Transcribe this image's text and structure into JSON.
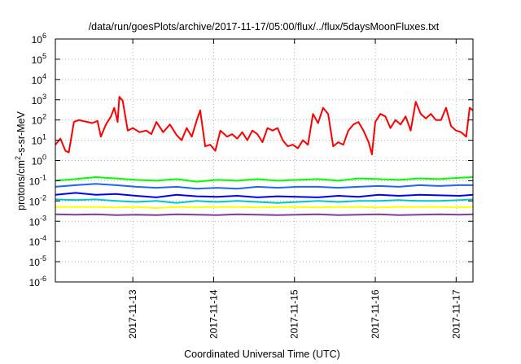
{
  "chart_data": {
    "type": "line",
    "title": "/data/run/goesPlots/archive/2017-11-17/05:00/flux/../flux/5daysMoonFluxes.txt",
    "xlabel": "Coordinated Universal Time (UTC)",
    "ylabel_prefix": "protons/cm",
    "ylabel_sup": "2",
    "ylabel_suffix": "-s-sr-MeV",
    "y_scale": "log",
    "ylim": [
      1e-06,
      1000000.0
    ],
    "y_ticks": [
      {
        "base": "10",
        "exp": "6",
        "value": 1000000.0
      },
      {
        "base": "10",
        "exp": "5",
        "value": 100000.0
      },
      {
        "base": "10",
        "exp": "4",
        "value": 10000.0
      },
      {
        "base": "10",
        "exp": "3",
        "value": 1000.0
      },
      {
        "base": "10",
        "exp": "2",
        "value": 100.0
      },
      {
        "base": "10",
        "exp": "1",
        "value": 10.0
      },
      {
        "base": "10",
        "exp": "0",
        "value": 1.0
      },
      {
        "base": "10",
        "exp": "-1",
        "value": 0.1
      },
      {
        "base": "10",
        "exp": "-2",
        "value": 0.01
      },
      {
        "base": "10",
        "exp": "-3",
        "value": 0.001
      },
      {
        "base": "10",
        "exp": "-4",
        "value": 0.0001
      },
      {
        "base": "10",
        "exp": "-5",
        "value": 1e-05
      },
      {
        "base": "10",
        "exp": "-6",
        "value": 1e-06
      }
    ],
    "xlim": [
      "2017-11-12 01:00",
      "2017-11-17 05:00"
    ],
    "x_ticks": [
      {
        "label": "2017-11-13",
        "time": "2017-11-13 00:00"
      },
      {
        "label": "2017-11-14",
        "time": "2017-11-14 00:00"
      },
      {
        "label": "2017-11-15",
        "time": "2017-11-15 00:00"
      },
      {
        "label": "2017-11-16",
        "time": "2017-11-16 00:00"
      },
      {
        "label": "2017-11-17",
        "time": "2017-11-17 00:00"
      }
    ],
    "grid": true,
    "series": [
      {
        "color": "#ff0000",
        "x": [
          "2017-11-12 01:00",
          "2017-11-12 02:30",
          "2017-11-12 04:00",
          "2017-11-12 05:00",
          "2017-11-12 06:30",
          "2017-11-12 08:00",
          "2017-11-12 09:00",
          "2017-11-12 10:30",
          "2017-11-12 12:00",
          "2017-11-12 13:30",
          "2017-11-12 14:30",
          "2017-11-12 16:00",
          "2017-11-12 17:30",
          "2017-11-12 18:30",
          "2017-11-12 19:30",
          "2017-11-12 20:00",
          "2017-11-12 21:00",
          "2017-11-12 22:30",
          "2017-11-13 00:00",
          "2017-11-13 02:00",
          "2017-11-13 04:00",
          "2017-11-13 05:30",
          "2017-11-13 07:00",
          "2017-11-13 09:00",
          "2017-11-13 11:00",
          "2017-11-13 13:00",
          "2017-11-13 14:30",
          "2017-11-13 16:00",
          "2017-11-13 17:30",
          "2017-11-13 19:00",
          "2017-11-13 20:00",
          "2017-11-13 21:30",
          "2017-11-13 23:00",
          "2017-11-14 00:30",
          "2017-11-14 02:00",
          "2017-11-14 04:00",
          "2017-11-14 05:30",
          "2017-11-14 07:00",
          "2017-11-14 08:30",
          "2017-11-14 10:00",
          "2017-11-14 11:30",
          "2017-11-14 13:00",
          "2017-11-14 14:30",
          "2017-11-14 16:00",
          "2017-11-14 17:30",
          "2017-11-14 19:00",
          "2017-11-14 20:30",
          "2017-11-14 22:00",
          "2017-11-14 23:30",
          "2017-11-15 01:00",
          "2017-11-15 02:30",
          "2017-11-15 04:00",
          "2017-11-15 05:30",
          "2017-11-15 07:00",
          "2017-11-15 08:30",
          "2017-11-15 10:00",
          "2017-11-15 11:30",
          "2017-11-15 13:00",
          "2017-11-15 14:30",
          "2017-11-15 16:00",
          "2017-11-15 17:30",
          "2017-11-15 19:00",
          "2017-11-15 20:30",
          "2017-11-15 22:00",
          "2017-11-15 23:00",
          "2017-11-16 00:00",
          "2017-11-16 01:30",
          "2017-11-16 03:00",
          "2017-11-16 04:30",
          "2017-11-16 06:00",
          "2017-11-16 07:30",
          "2017-11-16 09:00",
          "2017-11-16 10:30",
          "2017-11-16 12:00",
          "2017-11-16 13:30",
          "2017-11-16 15:00",
          "2017-11-16 16:30",
          "2017-11-16 18:00",
          "2017-11-16 19:30",
          "2017-11-16 21:00",
          "2017-11-16 22:30",
          "2017-11-17 00:00",
          "2017-11-17 01:30",
          "2017-11-17 03:00",
          "2017-11-17 04:00",
          "2017-11-17 05:00"
        ],
        "y": [
          6,
          12,
          3,
          2.5,
          80,
          100,
          90,
          80,
          70,
          90,
          15,
          60,
          150,
          400,
          80,
          1400,
          900,
          30,
          40,
          25,
          30,
          20,
          80,
          25,
          60,
          18,
          10,
          40,
          15,
          100,
          300,
          5,
          6,
          3,
          30,
          15,
          20,
          12,
          25,
          10,
          30,
          20,
          8,
          40,
          30,
          40,
          10,
          5,
          6,
          4,
          10,
          6,
          200,
          70,
          400,
          200,
          5,
          8,
          6,
          30,
          60,
          80,
          30,
          8,
          2,
          80,
          200,
          150,
          40,
          100,
          60,
          150,
          30,
          800,
          200,
          120,
          200,
          100,
          100,
          400,
          50,
          30,
          25,
          15,
          400,
          300
        ]
      },
      {
        "color": "#00ff00",
        "x": [
          "2017-11-12 01:00",
          "2017-11-12 07:00",
          "2017-11-12 13:00",
          "2017-11-12 19:00",
          "2017-11-13 01:00",
          "2017-11-13 07:00",
          "2017-11-13 13:00",
          "2017-11-13 19:00",
          "2017-11-14 01:00",
          "2017-11-14 07:00",
          "2017-11-14 13:00",
          "2017-11-14 19:00",
          "2017-11-15 01:00",
          "2017-11-15 07:00",
          "2017-11-15 13:00",
          "2017-11-15 19:00",
          "2017-11-16 01:00",
          "2017-11-16 07:00",
          "2017-11-16 13:00",
          "2017-11-16 19:00",
          "2017-11-17 01:00",
          "2017-11-17 05:00"
        ],
        "y": [
          0.1,
          0.12,
          0.15,
          0.13,
          0.11,
          0.1,
          0.12,
          0.09,
          0.11,
          0.1,
          0.12,
          0.1,
          0.11,
          0.12,
          0.1,
          0.13,
          0.12,
          0.11,
          0.13,
          0.12,
          0.14,
          0.15
        ]
      },
      {
        "color": "#0000ff",
        "x": [
          "2017-11-12 01:00",
          "2017-11-12 07:00",
          "2017-11-12 13:00",
          "2017-11-12 19:00",
          "2017-11-13 01:00",
          "2017-11-13 07:00",
          "2017-11-13 13:00",
          "2017-11-13 19:00",
          "2017-11-14 01:00",
          "2017-11-14 07:00",
          "2017-11-14 13:00",
          "2017-11-14 19:00",
          "2017-11-15 01:00",
          "2017-11-15 07:00",
          "2017-11-15 13:00",
          "2017-11-15 19:00",
          "2017-11-16 01:00",
          "2017-11-16 07:00",
          "2017-11-16 13:00",
          "2017-11-16 19:00",
          "2017-11-17 01:00",
          "2017-11-17 05:00"
        ],
        "y": [
          0.02,
          0.025,
          0.02,
          0.022,
          0.018,
          0.015,
          0.02,
          0.017,
          0.016,
          0.018,
          0.015,
          0.017,
          0.016,
          0.015,
          0.018,
          0.016,
          0.02,
          0.018,
          0.02,
          0.019,
          0.018,
          0.02
        ]
      },
      {
        "color": "#1e64ff",
        "x": [
          "2017-11-12 01:00",
          "2017-11-12 07:00",
          "2017-11-12 13:00",
          "2017-11-12 19:00",
          "2017-11-13 01:00",
          "2017-11-13 07:00",
          "2017-11-13 13:00",
          "2017-11-13 19:00",
          "2017-11-14 01:00",
          "2017-11-14 07:00",
          "2017-11-14 13:00",
          "2017-11-14 19:00",
          "2017-11-15 01:00",
          "2017-11-15 07:00",
          "2017-11-15 13:00",
          "2017-11-15 19:00",
          "2017-11-16 01:00",
          "2017-11-16 07:00",
          "2017-11-16 13:00",
          "2017-11-16 19:00",
          "2017-11-17 01:00",
          "2017-11-17 05:00"
        ],
        "y": [
          0.05,
          0.06,
          0.07,
          0.06,
          0.05,
          0.045,
          0.05,
          0.04,
          0.045,
          0.04,
          0.05,
          0.045,
          0.05,
          0.05,
          0.045,
          0.05,
          0.055,
          0.05,
          0.06,
          0.055,
          0.06,
          0.06
        ]
      },
      {
        "color": "#00c8c8",
        "x": [
          "2017-11-12 01:00",
          "2017-11-12 07:00",
          "2017-11-12 13:00",
          "2017-11-12 19:00",
          "2017-11-13 01:00",
          "2017-11-13 07:00",
          "2017-11-13 13:00",
          "2017-11-13 19:00",
          "2017-11-14 01:00",
          "2017-11-14 07:00",
          "2017-11-14 13:00",
          "2017-11-14 19:00",
          "2017-11-15 01:00",
          "2017-11-15 07:00",
          "2017-11-15 13:00",
          "2017-11-15 19:00",
          "2017-11-16 01:00",
          "2017-11-16 07:00",
          "2017-11-16 13:00",
          "2017-11-16 19:00",
          "2017-11-17 01:00",
          "2017-11-17 05:00"
        ],
        "y": [
          0.012,
          0.011,
          0.012,
          0.01,
          0.009,
          0.01,
          0.008,
          0.01,
          0.009,
          0.01,
          0.009,
          0.008,
          0.009,
          0.01,
          0.009,
          0.01,
          0.01,
          0.011,
          0.01,
          0.01,
          0.011,
          0.012
        ]
      },
      {
        "color": "#ffff00",
        "x": [
          "2017-11-12 01:00",
          "2017-11-12 07:00",
          "2017-11-12 13:00",
          "2017-11-12 19:00",
          "2017-11-13 01:00",
          "2017-11-13 07:00",
          "2017-11-13 13:00",
          "2017-11-13 19:00",
          "2017-11-14 01:00",
          "2017-11-14 07:00",
          "2017-11-14 13:00",
          "2017-11-14 19:00",
          "2017-11-15 01:00",
          "2017-11-15 07:00",
          "2017-11-15 13:00",
          "2017-11-15 19:00",
          "2017-11-16 01:00",
          "2017-11-16 07:00",
          "2017-11-16 13:00",
          "2017-11-16 19:00",
          "2017-11-17 01:00",
          "2017-11-17 05:00"
        ],
        "y": [
          0.005,
          0.005,
          0.005,
          0.0048,
          0.005,
          0.0045,
          0.005,
          0.0048,
          0.005,
          0.005,
          0.0048,
          0.005,
          0.005,
          0.0048,
          0.005,
          0.005,
          0.0048,
          0.005,
          0.005,
          0.005,
          0.0048,
          0.005
        ]
      },
      {
        "color": "#7f3f98",
        "x": [
          "2017-11-12 01:00",
          "2017-11-12 07:00",
          "2017-11-12 13:00",
          "2017-11-12 19:00",
          "2017-11-13 01:00",
          "2017-11-13 07:00",
          "2017-11-13 13:00",
          "2017-11-13 19:00",
          "2017-11-14 01:00",
          "2017-11-14 07:00",
          "2017-11-14 13:00",
          "2017-11-14 19:00",
          "2017-11-15 01:00",
          "2017-11-15 07:00",
          "2017-11-15 13:00",
          "2017-11-15 19:00",
          "2017-11-16 01:00",
          "2017-11-16 07:00",
          "2017-11-16 13:00",
          "2017-11-16 19:00",
          "2017-11-17 01:00",
          "2017-11-17 05:00"
        ],
        "y": [
          0.0022,
          0.0021,
          0.0022,
          0.002,
          0.0021,
          0.002,
          0.0022,
          0.0021,
          0.002,
          0.0022,
          0.0021,
          0.002,
          0.0021,
          0.0022,
          0.002,
          0.0021,
          0.0022,
          0.002,
          0.0021,
          0.0022,
          0.0021,
          0.0022
        ]
      }
    ]
  }
}
